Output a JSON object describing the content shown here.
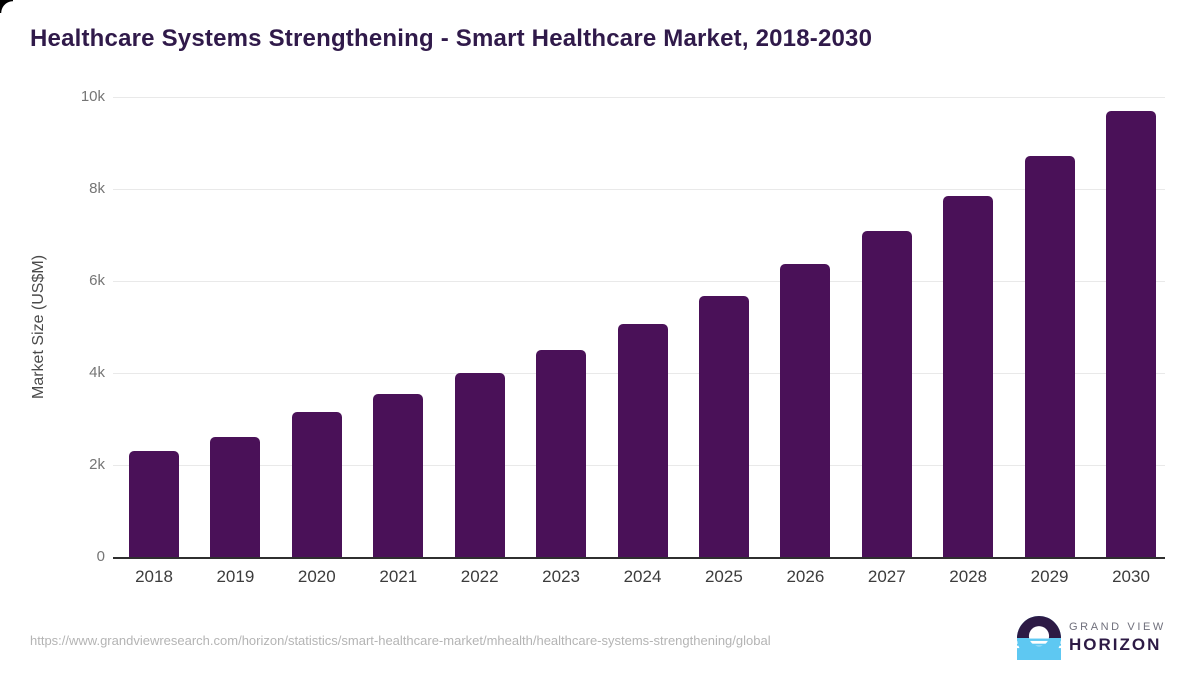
{
  "page": {
    "title": "Healthcare Systems Strengthening - Smart Healthcare Market, 2018-2030",
    "source_url": "https://www.grandviewresearch.com/horizon/statistics/smart-healthcare-market/mhealth/healthcare-systems-strengthening/global"
  },
  "logo": {
    "line1": "GRAND VIEW",
    "line2": "HORIZON"
  },
  "colors": {
    "bar": "#4a1158",
    "title": "#301a4a",
    "gridline": "#e9e9e9",
    "axis": "#2f2f2f",
    "tick": "#757575",
    "x_label": "#3c3c3c",
    "url": "#b4b4b4",
    "logo_dark": "#2d1a45",
    "logo_blue": "#5ec8f2",
    "logo_gray": "#70707c"
  },
  "chart_data": {
    "type": "bar",
    "title": "Healthcare Systems Strengthening - Smart Healthcare Market, 2018-2030",
    "categories": [
      "2018",
      "2019",
      "2020",
      "2021",
      "2022",
      "2023",
      "2024",
      "2025",
      "2026",
      "2027",
      "2028",
      "2029",
      "2030"
    ],
    "values": [
      2310,
      2610,
      3160,
      3550,
      4000,
      4510,
      5060,
      5670,
      6360,
      7090,
      7850,
      8720,
      9700
    ],
    "xlabel": "",
    "ylabel": "Market Size (US$M)",
    "ylim": [
      0,
      10000
    ],
    "yticks": [
      {
        "value": 0,
        "label": "0"
      },
      {
        "value": 2000,
        "label": "2k"
      },
      {
        "value": 4000,
        "label": "4k"
      },
      {
        "value": 6000,
        "label": "6k"
      },
      {
        "value": 8000,
        "label": "8k"
      },
      {
        "value": 10000,
        "label": "10k"
      }
    ],
    "grid": "horizontal",
    "legend": "none",
    "bar_color": "#4a1158"
  }
}
